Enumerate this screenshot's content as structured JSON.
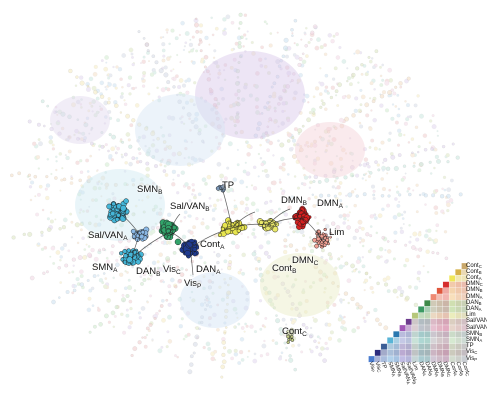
{
  "figure": {
    "region_labels": [
      {
        "id": "smn-b",
        "main": "SMN",
        "sub": "B"
      },
      {
        "id": "tp",
        "main": "TP",
        "sub": ""
      },
      {
        "id": "dmn-b",
        "main": "DMN",
        "sub": "B"
      },
      {
        "id": "dmn-a",
        "main": "DMN",
        "sub": "A"
      },
      {
        "id": "sal-van-b",
        "main": "Sal/VAN",
        "sub": "B"
      },
      {
        "id": "sal-van-a",
        "main": "Sal/VAN",
        "sub": "A"
      },
      {
        "id": "lim",
        "main": "Lim",
        "sub": ""
      },
      {
        "id": "cont-a",
        "main": "Cont",
        "sub": "A"
      },
      {
        "id": "dmn-c",
        "main": "DMN",
        "sub": "C"
      },
      {
        "id": "cont-b",
        "main": "Cont",
        "sub": "B"
      },
      {
        "id": "smn-a",
        "main": "SMN",
        "sub": "A"
      },
      {
        "id": "dan-b",
        "main": "DAN",
        "sub": "B"
      },
      {
        "id": "vis-c",
        "main": "Vis",
        "sub": "C"
      },
      {
        "id": "dan-a",
        "main": "DAN",
        "sub": "A"
      },
      {
        "id": "vis-p",
        "main": "Vis",
        "sub": "P"
      },
      {
        "id": "cont-c",
        "main": "Cont",
        "sub": "C"
      }
    ],
    "matrix": {
      "labels": [
        {
          "main": "Cont",
          "sub": "C"
        },
        {
          "main": "Cont",
          "sub": "B"
        },
        {
          "main": "Cont",
          "sub": "A"
        },
        {
          "main": "DMN",
          "sub": "C"
        },
        {
          "main": "DMN",
          "sub": "B"
        },
        {
          "main": "DMN",
          "sub": "A"
        },
        {
          "main": "DAN",
          "sub": "B"
        },
        {
          "main": "DAN",
          "sub": "A"
        },
        {
          "main": "Lim",
          "sub": ""
        },
        {
          "main": "Sal/VAN",
          "sub": "B"
        },
        {
          "main": "Sal/VAN",
          "sub": "A"
        },
        {
          "main": "SMN",
          "sub": "B"
        },
        {
          "main": "SMN",
          "sub": "A"
        },
        {
          "main": "TP",
          "sub": ""
        },
        {
          "main": "Vis",
          "sub": "C"
        },
        {
          "main": "Vis",
          "sub": "P"
        }
      ],
      "colors": [
        "#c9a86b",
        "#d6b24a",
        "#efe65a",
        "#d62d2d",
        "#e0573d",
        "#ee8a74",
        "#3f8a4a",
        "#3b9a63",
        "#b6c77a",
        "#6e3c8e",
        "#a25ab7",
        "#2a78b0",
        "#59b4d6",
        "#3b5e96",
        "#2c2c7e",
        "#4a7ccf"
      ]
    },
    "cluster_colors": {
      "smn": "#45b6d8",
      "sal_van": "#8bb9e6",
      "dan": "#32a36a",
      "vis": "#1f3a8f",
      "cont": "#e7e54f",
      "dmn": "#d62020",
      "lim": "#f2a195",
      "tp": "#7a95b4"
    }
  }
}
